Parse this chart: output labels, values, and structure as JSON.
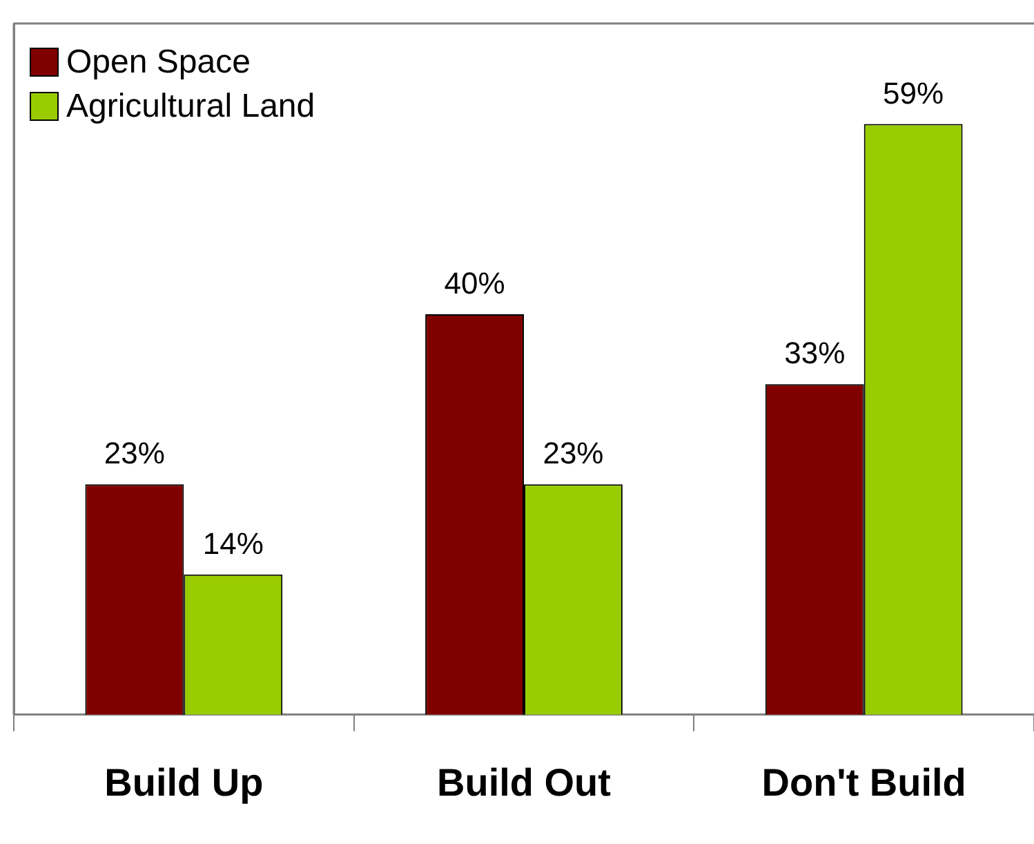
{
  "chart_data": {
    "type": "bar",
    "categories": [
      "Build Up",
      "Build Out",
      "Don't Build"
    ],
    "series": [
      {
        "name": "Open Space",
        "color": "#800000",
        "values": [
          23,
          40,
          33
        ],
        "value_labels": [
          "23%",
          "40%",
          "33%"
        ]
      },
      {
        "name": "Agricultural Land",
        "color": "#99cc00",
        "values": [
          14,
          23,
          59
        ],
        "value_labels": [
          "14%",
          "23%",
          "59%"
        ]
      }
    ],
    "legend": "top left",
    "grid": false,
    "tick_labels": "x"
  }
}
